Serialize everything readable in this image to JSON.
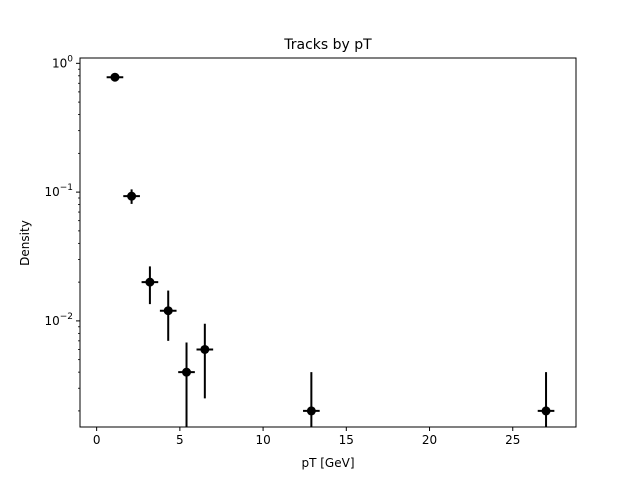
{
  "chart_data": {
    "type": "scatter",
    "title": "Tracks by pT",
    "xlabel": "pT [GeV]",
    "ylabel": "Density",
    "xlim": [
      -1,
      28.8
    ],
    "ylim": [
      0.0015,
      1.1
    ],
    "yscale": "log",
    "grid": false,
    "x_ticks": [
      0,
      5,
      10,
      15,
      20,
      25
    ],
    "x_tick_labels": [
      "0",
      "5",
      "10",
      "15",
      "20",
      "25"
    ],
    "y_ticks": [
      1,
      0.1,
      0.01
    ],
    "y_tick_labels": [
      {
        "base": "10",
        "exp": "0"
      },
      {
        "base": "10",
        "exp": "−1"
      },
      {
        "base": "10",
        "exp": "−2"
      }
    ],
    "marker_color": "#000000",
    "points": [
      {
        "x": 1.1,
        "y": 0.78,
        "x_err": 0.5,
        "y_low": 0.75,
        "y_high": 0.81
      },
      {
        "x": 2.1,
        "y": 0.093,
        "x_err": 0.5,
        "y_low": 0.081,
        "y_high": 0.105
      },
      {
        "x": 3.2,
        "y": 0.02,
        "x_err": 0.5,
        "y_low": 0.0135,
        "y_high": 0.0265
      },
      {
        "x": 4.3,
        "y": 0.012,
        "x_err": 0.5,
        "y_low": 0.007,
        "y_high": 0.0172
      },
      {
        "x": 5.4,
        "y": 0.004,
        "x_err": 0.5,
        "y_low": 0.0012,
        "y_high": 0.0068
      },
      {
        "x": 6.5,
        "y": 0.006,
        "x_err": 0.5,
        "y_low": 0.0025,
        "y_high": 0.0095
      },
      {
        "x": 12.9,
        "y": 0.002,
        "x_err": 0.5,
        "y_low": 0.0008,
        "y_high": 0.004
      },
      {
        "x": 27.0,
        "y": 0.002,
        "x_err": 0.5,
        "y_low": 0.0008,
        "y_high": 0.004
      }
    ]
  }
}
